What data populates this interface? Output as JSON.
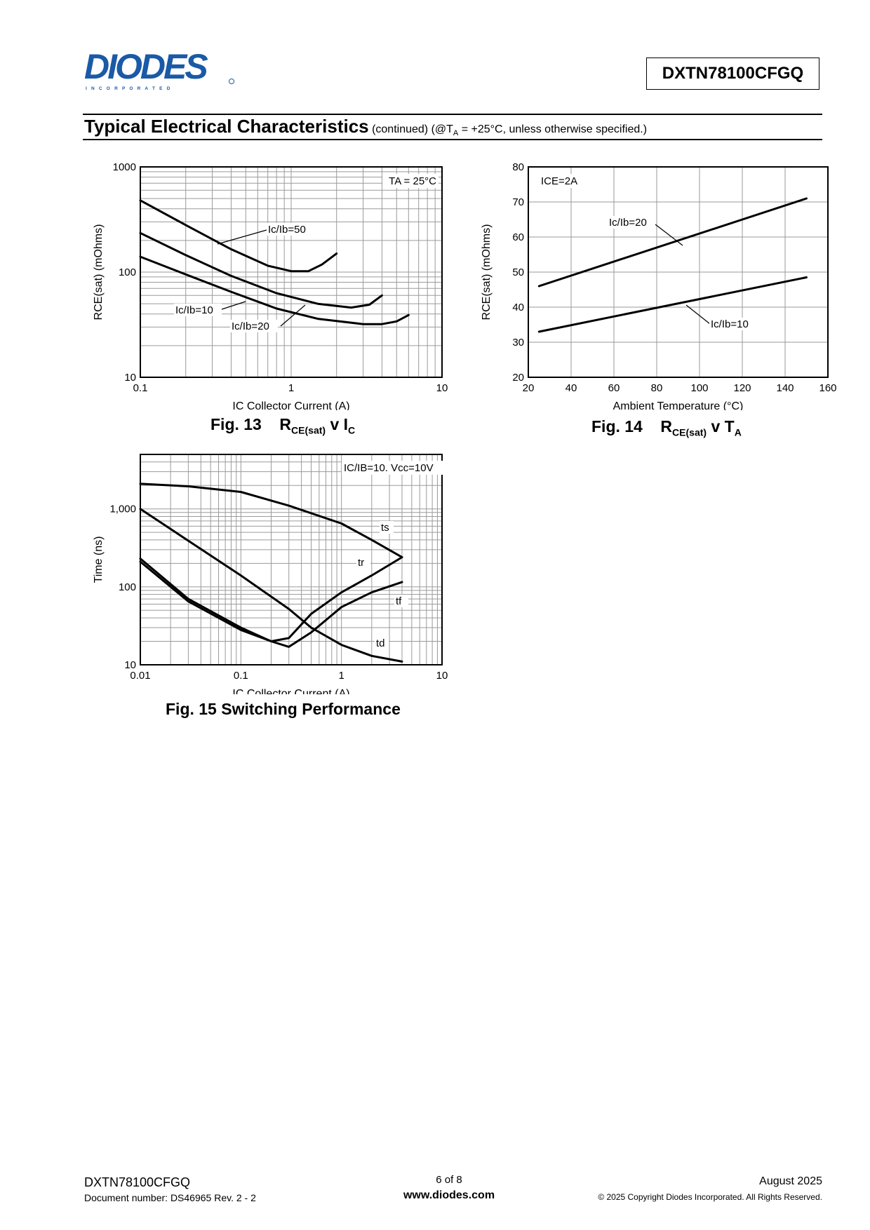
{
  "header": {
    "logo_text": "DIODES",
    "logo_subtext": "I N C O R P O R A T E D",
    "part_number": "DXTN78100CFGQ"
  },
  "section": {
    "title": "Typical Electrical Characteristics",
    "subtitle": "(continued)  (@T",
    "subtitle_sub": "A",
    "subtitle_rest": " = +25°C, unless otherwise specified.)"
  },
  "chart_data": [
    {
      "type": "line",
      "caption": "Fig. 13",
      "caption_formula": [
        "R",
        "CE(sat)",
        " v  I",
        "C"
      ],
      "annotation": "TA = 25°C",
      "xlabel": "IC  Collector Current (A)",
      "ylabel": "RCE(sat) (mOhms)",
      "xscale": "log",
      "yscale": "log",
      "xlim": [
        0.1,
        10
      ],
      "ylim": [
        10,
        1000
      ],
      "xticks": [
        "0.1",
        "1",
        "10"
      ],
      "yticks": [
        "10",
        "100",
        "1000"
      ],
      "grid": true,
      "series": [
        {
          "name": "Ic/Ib=50",
          "x": [
            0.1,
            0.2,
            0.4,
            0.7,
            1.0,
            1.3,
            1.6,
            2.0
          ],
          "y": [
            480,
            280,
            165,
            115,
            102,
            102,
            118,
            150
          ]
        },
        {
          "name": "Ic/Ib=20",
          "x": [
            0.1,
            0.2,
            0.4,
            0.8,
            1.5,
            2.5,
            3.3,
            4.0
          ],
          "y": [
            235,
            145,
            92,
            63,
            50,
            46,
            49,
            60
          ]
        },
        {
          "name": "Ic/Ib=10",
          "x": [
            0.1,
            0.2,
            0.4,
            0.8,
            1.5,
            3.0,
            4.0,
            5.0,
            6.0
          ],
          "y": [
            140,
            95,
            65,
            45,
            36,
            32,
            32,
            34,
            39
          ]
        }
      ]
    },
    {
      "type": "line",
      "caption": "Fig. 14",
      "caption_formula": [
        "R",
        "CE(sat)",
        " v T",
        "A"
      ],
      "annotation": "ICE=2A",
      "xlabel": "Ambient Temperature (°C)",
      "ylabel": "RCE(sat) (mOhms)",
      "xlim": [
        20,
        160
      ],
      "ylim": [
        20,
        80
      ],
      "xticks": [
        "20",
        "40",
        "60",
        "80",
        "100",
        "120",
        "140",
        "160"
      ],
      "yticks": [
        "20",
        "30",
        "40",
        "50",
        "60",
        "70",
        "80"
      ],
      "grid": true,
      "series": [
        {
          "name": "Ic/Ib=20",
          "x": [
            25,
            150
          ],
          "y": [
            46,
            71
          ]
        },
        {
          "name": "Ic/Ib=10",
          "x": [
            25,
            150
          ],
          "y": [
            33,
            48.5
          ]
        }
      ]
    },
    {
      "type": "line",
      "caption": "Fig. 15  Switching Performance",
      "annotation": "IC/IB=10. Vcc=10V",
      "xlabel": "IC  Collector Current (A)",
      "ylabel": "Time (ns)",
      "xscale": "log",
      "yscale": "log",
      "xlim": [
        0.01,
        10
      ],
      "ylim": [
        10,
        5000
      ],
      "xticks": [
        "0.01",
        "0.1",
        "1",
        "10"
      ],
      "yticks": [
        "10",
        "100",
        "1,000"
      ],
      "grid": true,
      "series": [
        {
          "name": "ts",
          "x": [
            0.01,
            0.03,
            0.1,
            0.3,
            1.0,
            2.0,
            4.0
          ],
          "y": [
            2100,
            1950,
            1650,
            1100,
            650,
            400,
            240
          ]
        },
        {
          "name": "tr",
          "x": [
            0.01,
            0.03,
            0.1,
            0.3,
            0.5,
            1.0,
            2.0,
            4.0
          ],
          "y": [
            1000,
            390,
            140,
            52,
            30,
            18,
            13,
            11
          ]
        },
        {
          "name": "tf",
          "x": [
            0.01,
            0.03,
            0.1,
            0.2,
            0.3,
            0.5,
            1.0,
            2.0,
            4.0
          ],
          "y": [
            230,
            70,
            30,
            20,
            17,
            26,
            55,
            85,
            115
          ]
        },
        {
          "name": "td",
          "x": [
            0.01,
            0.03,
            0.1,
            0.2,
            0.3,
            0.5,
            1.0,
            2.0,
            4.0
          ],
          "y": [
            210,
            65,
            28,
            20,
            22,
            45,
            85,
            140,
            240
          ]
        }
      ]
    }
  ],
  "footer": {
    "part_number": "DXTN78100CFGQ",
    "doc_number": "Document number: DS46965 Rev. 2 - 2",
    "page": "6 of 8",
    "website": "www.diodes.com",
    "date": "August 2025",
    "copyright": "© 2025 Copyright Diodes Incorporated. All Rights Reserved."
  }
}
